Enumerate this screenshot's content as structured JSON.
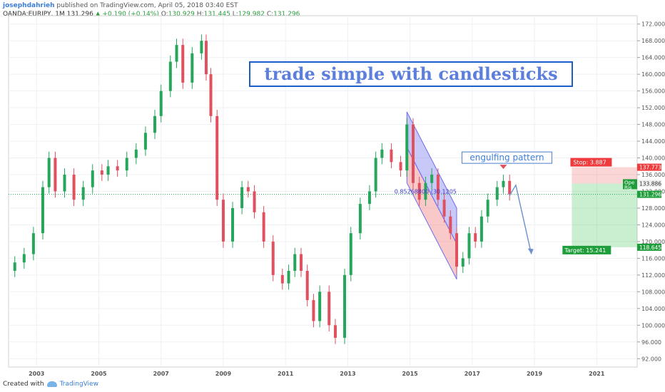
{
  "header": {
    "author": "josephdahrieh",
    "published": "published on TradingView.com, April 05, 2018 03:40 EST",
    "symbol": "OANDA:EURJPY, 1M",
    "last": "131.296",
    "change": "+0.190 (+0.14%)",
    "o_label": "O:",
    "o": "130.929",
    "h_label": "H:",
    "h": "131.445",
    "l_label": "L:",
    "l": "129.982",
    "c_label": "C:",
    "c": "131.296"
  },
  "footer": {
    "created_with": "Created with",
    "brand": "TradingView"
  },
  "colors": {
    "up": "#26a65b",
    "down": "#e0505e",
    "channel_blue": "#6c6cf0",
    "channel_red": "#f08080",
    "accent": "#3b7dd8"
  },
  "chart_data": {
    "type": "candlestick",
    "title": "trade simple with candlesticks",
    "y_ticks": [
      "172.000",
      "168.000",
      "164.000",
      "160.000",
      "156.000",
      "152.000",
      "148.000",
      "144.000",
      "140.000",
      "136.000",
      "132.000",
      "128.000",
      "124.000",
      "120.000",
      "116.000",
      "112.000",
      "108.000",
      "104.000",
      "100.000",
      "96.000",
      "92.000"
    ],
    "x_ticks": [
      "2003",
      "2005",
      "2007",
      "2009",
      "2011",
      "2013",
      "2015",
      "2017",
      "2019",
      "2021"
    ],
    "ylim": [
      90,
      174
    ],
    "xlim": [
      2002.1,
      2022.3
    ],
    "grid": true,
    "series_close": [
      [
        2002.3,
        115
      ],
      [
        2002.6,
        117
      ],
      [
        2002.9,
        122
      ],
      [
        2003.2,
        133
      ],
      [
        2003.4,
        140
      ],
      [
        2003.6,
        132
      ],
      [
        2003.9,
        136
      ],
      [
        2004.2,
        130
      ],
      [
        2004.5,
        133
      ],
      [
        2004.8,
        137
      ],
      [
        2005.1,
        136
      ],
      [
        2005.3,
        138
      ],
      [
        2005.6,
        137
      ],
      [
        2005.9,
        140
      ],
      [
        2006.2,
        142
      ],
      [
        2006.5,
        146
      ],
      [
        2006.8,
        150
      ],
      [
        2007.0,
        156
      ],
      [
        2007.3,
        163
      ],
      [
        2007.5,
        167
      ],
      [
        2007.7,
        158
      ],
      [
        2008.0,
        165
      ],
      [
        2008.3,
        168
      ],
      [
        2008.45,
        160
      ],
      [
        2008.6,
        150
      ],
      [
        2008.8,
        130
      ],
      [
        2009.0,
        120
      ],
      [
        2009.3,
        128
      ],
      [
        2009.6,
        133
      ],
      [
        2009.8,
        132
      ],
      [
        2010.0,
        127
      ],
      [
        2010.3,
        120
      ],
      [
        2010.6,
        112
      ],
      [
        2010.9,
        110
      ],
      [
        2011.1,
        113
      ],
      [
        2011.3,
        117
      ],
      [
        2011.5,
        113
      ],
      [
        2011.7,
        106
      ],
      [
        2011.9,
        101
      ],
      [
        2012.1,
        108
      ],
      [
        2012.4,
        100
      ],
      [
        2012.6,
        97
      ],
      [
        2012.9,
        112
      ],
      [
        2013.1,
        122
      ],
      [
        2013.4,
        129
      ],
      [
        2013.7,
        132
      ],
      [
        2013.9,
        140
      ],
      [
        2014.1,
        142
      ],
      [
        2014.4,
        139
      ],
      [
        2014.7,
        137
      ],
      [
        2014.9,
        148
      ],
      [
        2015.1,
        134
      ],
      [
        2015.3,
        130
      ],
      [
        2015.5,
        134
      ],
      [
        2015.7,
        136
      ],
      [
        2015.9,
        130
      ],
      [
        2016.1,
        126
      ],
      [
        2016.3,
        122
      ],
      [
        2016.5,
        114
      ],
      [
        2016.7,
        116
      ],
      [
        2016.9,
        122
      ],
      [
        2017.1,
        120
      ],
      [
        2017.3,
        126
      ],
      [
        2017.5,
        130
      ],
      [
        2017.8,
        133
      ],
      [
        2018.0,
        134.5
      ],
      [
        2018.2,
        131.3
      ]
    ],
    "channel": {
      "p1": [
        2014.9,
        151
      ],
      "p2": [
        2016.5,
        128
      ],
      "p3": [
        2016.5,
        111
      ],
      "p4": [
        2014.9,
        134
      ],
      "mid_label": "0.85268800 (30.1205"
    },
    "engulfing": {
      "label": "engulfing pattern",
      "x": 2018.0,
      "y": 137
    },
    "projection": [
      [
        2018.2,
        131
      ],
      [
        2018.4,
        133.5
      ],
      [
        2018.9,
        117
      ]
    ],
    "position": {
      "entry": 133.886,
      "stop": 137.773,
      "target": 118.645,
      "stop_label": "Stop: 3.887",
      "target_label": "Target: 15.241",
      "entry_box_label": "Ope",
      "risk_box_label": "Ris"
    },
    "price_tags": {
      "stop": "137.773",
      "entry": "133.886",
      "last": "131.296",
      "target": "118.645"
    }
  }
}
